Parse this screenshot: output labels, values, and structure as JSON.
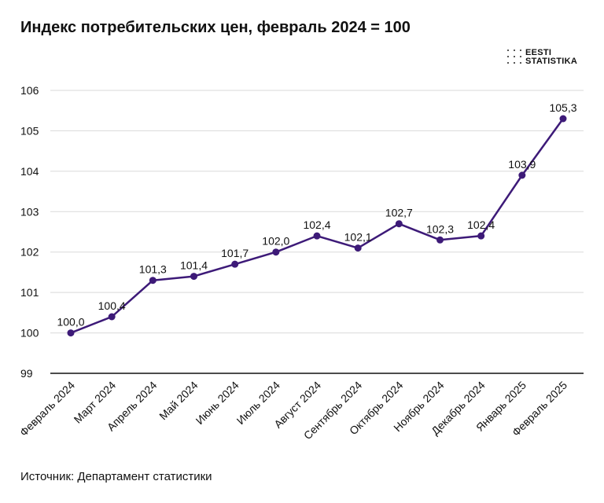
{
  "title": "Индекс потребительских цен, февраль 2024 = 100",
  "logo": {
    "line1": "EESTI",
    "line2": "STATISTIKA"
  },
  "source": "Источник: Департамент статистики",
  "colors": {
    "line": "#3d1a78",
    "grid": "#d9d9d9",
    "axis": "#111111"
  },
  "chart_data": {
    "type": "line",
    "title": "Индекс потребительских цен, февраль 2024 = 100",
    "xlabel": "",
    "ylabel": "",
    "categories": [
      "Февраль 2024",
      "Март 2024",
      "Апрель 2024",
      "Май 2024",
      "Июнь 2024",
      "Июль 2024",
      "Август 2024",
      "Сентябрь 2024",
      "Октябрь 2024",
      "Ноябрь 2024",
      "Декабрь 2024",
      "Январь 2025",
      "Февраль 2025"
    ],
    "values": [
      100.0,
      100.4,
      101.3,
      101.4,
      101.7,
      102.0,
      102.4,
      102.1,
      102.7,
      102.3,
      102.4,
      103.9,
      105.3
    ],
    "labels": [
      "100,0",
      "100,4",
      "101,3",
      "101,4",
      "101,7",
      "102,0",
      "102,4",
      "102,1",
      "102,7",
      "102,3",
      "102,4",
      "103,9",
      "105,3"
    ],
    "yticks": [
      "99",
      "100",
      "101",
      "102",
      "103",
      "104",
      "105",
      "106"
    ],
    "ylim": [
      99,
      106
    ],
    "grid": true
  }
}
